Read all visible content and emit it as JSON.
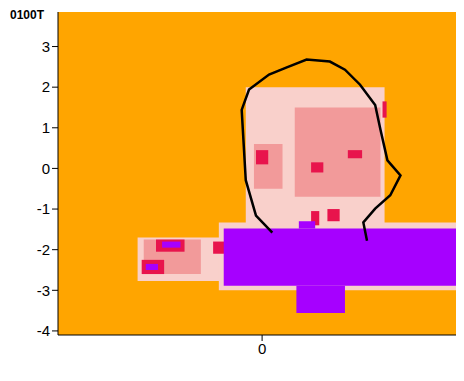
{
  "chart_data": {
    "type": "heatmap",
    "title": "0100T",
    "xlim": [
      -5.0,
      4.75
    ],
    "ylim": [
      -4.1,
      3.85
    ],
    "xticks": [
      0
    ],
    "yticks": [
      -4,
      -3,
      -2,
      -1,
      0,
      1,
      2,
      3
    ],
    "colors": [
      "#ffa500",
      "#f9d0cb",
      "#f29a9a",
      "#e8144c",
      "#a600ff"
    ],
    "cells": [
      {
        "x": [
          -0.4,
          3.0
        ],
        "y": [
          -1.4,
          2.0
        ],
        "level": 1
      },
      {
        "x": [
          -3.05,
          -0.8
        ],
        "y": [
          -2.77,
          -1.7
        ],
        "level": 1
      },
      {
        "x": [
          -1.06,
          4.75
        ],
        "y": [
          -3.0,
          -1.33
        ],
        "level": 1
      },
      {
        "x": [
          0.8,
          2.9
        ],
        "y": [
          -0.7,
          1.5
        ],
        "level": 2
      },
      {
        "x": [
          -0.2,
          0.5
        ],
        "y": [
          -0.5,
          0.6
        ],
        "level": 2
      },
      {
        "x": [
          -2.9,
          -1.5
        ],
        "y": [
          -2.6,
          -1.75
        ],
        "level": 2
      },
      {
        "x": [
          -0.15,
          0.15
        ],
        "y": [
          0.1,
          0.45
        ],
        "level": 3
      },
      {
        "x": [
          2.1,
          2.45
        ],
        "y": [
          0.25,
          0.45
        ],
        "level": 3
      },
      {
        "x": [
          2.95,
          3.05
        ],
        "y": [
          1.25,
          1.65
        ],
        "level": 3
      },
      {
        "x": [
          1.2,
          1.5
        ],
        "y": [
          -0.1,
          0.15
        ],
        "level": 3
      },
      {
        "x": [
          1.6,
          1.9
        ],
        "y": [
          -1.3,
          -1.0
        ],
        "level": 3
      },
      {
        "x": [
          1.2,
          1.4
        ],
        "y": [
          -1.4,
          -1.05
        ],
        "level": 3
      },
      {
        "x": [
          -2.6,
          -1.9
        ],
        "y": [
          -2.05,
          -1.75
        ],
        "level": 3
      },
      {
        "x": [
          -2.95,
          -2.4
        ],
        "y": [
          -2.6,
          -2.25
        ],
        "level": 3
      },
      {
        "x": [
          -1.2,
          -0.9
        ],
        "y": [
          -2.1,
          -1.8
        ],
        "level": 3
      },
      {
        "x": [
          -0.94,
          4.75
        ],
        "y": [
          -2.89,
          -1.48
        ],
        "level": 4
      },
      {
        "x": [
          0.84,
          2.03
        ],
        "y": [
          -3.56,
          -2.89
        ],
        "level": 4
      },
      {
        "x": [
          -2.45,
          -2.0
        ],
        "y": [
          -1.95,
          -1.8
        ],
        "level": 4
      },
      {
        "x": [
          -2.85,
          -2.55
        ],
        "y": [
          -2.5,
          -2.35
        ],
        "level": 4
      },
      {
        "x": [
          0.9,
          1.3
        ],
        "y": [
          -1.48,
          -1.3
        ],
        "level": 4
      }
    ],
    "outline": {
      "x": [
        0.25,
        -0.15,
        -0.4,
        -0.5,
        -0.32,
        0.17,
        0.59,
        1.09,
        1.66,
        2.03,
        2.4,
        2.77,
        2.9,
        3.07,
        3.39,
        3.14,
        2.77,
        2.48,
        2.57
      ],
      "y": [
        -1.58,
        -1.16,
        -0.29,
        1.44,
        1.94,
        2.31,
        2.48,
        2.68,
        2.63,
        2.43,
        2.06,
        1.56,
        0.95,
        0.2,
        -0.17,
        -0.66,
        -0.99,
        -1.33,
        -1.78
      ]
    }
  }
}
